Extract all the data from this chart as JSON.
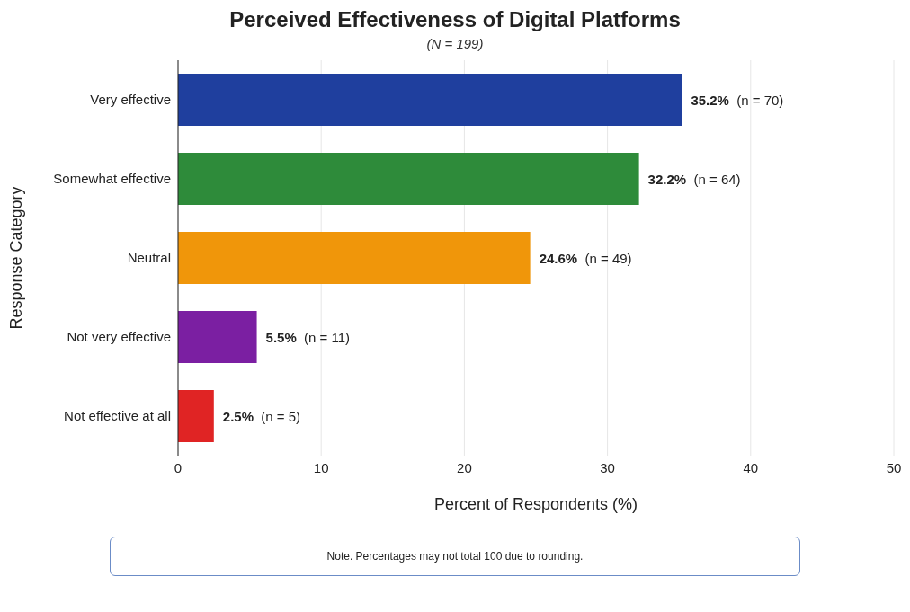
{
  "chart_data": {
    "type": "bar",
    "orientation": "horizontal",
    "title": "Perceived Effectiveness of Digital Platforms",
    "subtitle": "(N = 199)",
    "xlabel": "Percent of Respondents (%)",
    "ylabel": "Response Category",
    "categories": [
      "Very effective",
      "Somewhat effective",
      "Neutral",
      "Not very effective",
      "Not effective at all"
    ],
    "values": [
      35.2,
      32.2,
      24.6,
      5.5,
      2.5
    ],
    "colors": [
      "#1f3f9e",
      "#2e8b3a",
      "#f0960a",
      "#7b1fa2",
      "#e02424"
    ],
    "value_labels": [
      "35.2% (n = 70)",
      "32.2% (n = 64)",
      "24.6% (n = 49)",
      "5.5% (n = 11)",
      "2.5% (n = 5)"
    ],
    "xlim": [
      0,
      50
    ],
    "xticks": [
      0,
      10,
      20,
      30,
      40,
      50
    ],
    "grid": "x",
    "legend": false,
    "annotations": [
      "Note. Percentages may not total 100 due to rounding."
    ]
  }
}
